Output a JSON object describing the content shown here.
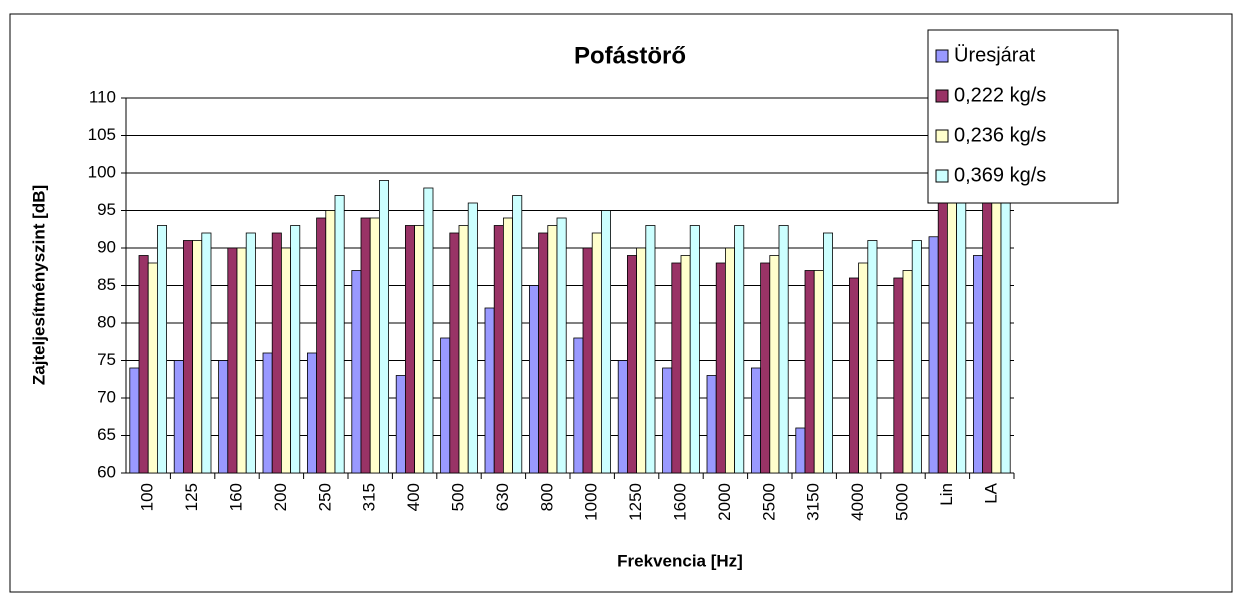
{
  "chart_data": {
    "type": "bar",
    "title": "Pofástörő",
    "x_label": "Frekvencia [Hz]",
    "y_label": "Zajteljesítményszint [dB]",
    "categories": [
      "100",
      "125",
      "160",
      "200",
      "250",
      "315",
      "400",
      "500",
      "630",
      "800",
      "1000",
      "1250",
      "1600",
      "2000",
      "2500",
      "3150",
      "4000",
      "5000",
      "Lin",
      "LA"
    ],
    "series": [
      {
        "name": "Üresjárat",
        "color": "#9999ff",
        "values": [
          74,
          75,
          75,
          76,
          76,
          87,
          73,
          78,
          82,
          85,
          78,
          75,
          74,
          73,
          74,
          66,
          null,
          null,
          91.5,
          89
        ]
      },
      {
        "name": "0,222 kg/s",
        "color": "#993366",
        "values": [
          89,
          91,
          90,
          92,
          94,
          94,
          93,
          92,
          93,
          92,
          90,
          89,
          88,
          88,
          88,
          87,
          86,
          86,
          103.3,
          101
        ]
      },
      {
        "name": "0,236 kg/s",
        "color": "#ffffcc",
        "values": [
          88,
          91,
          90,
          90,
          95,
          94,
          93,
          93,
          94,
          93,
          92,
          90,
          89,
          90,
          89,
          87,
          88,
          87,
          104,
          102
        ]
      },
      {
        "name": "0,369 kg/s",
        "color": "#ccffff",
        "values": [
          93,
          92,
          92,
          93,
          97,
          99,
          98,
          96,
          97,
          94,
          95,
          93,
          93,
          93,
          93,
          92,
          91,
          91,
          107.4,
          105
        ]
      }
    ],
    "ylim": [
      60,
      110
    ],
    "yticks": [
      60,
      65,
      70,
      75,
      80,
      85,
      90,
      95,
      100,
      105,
      110
    ],
    "grid": true,
    "legend": "top-right"
  }
}
